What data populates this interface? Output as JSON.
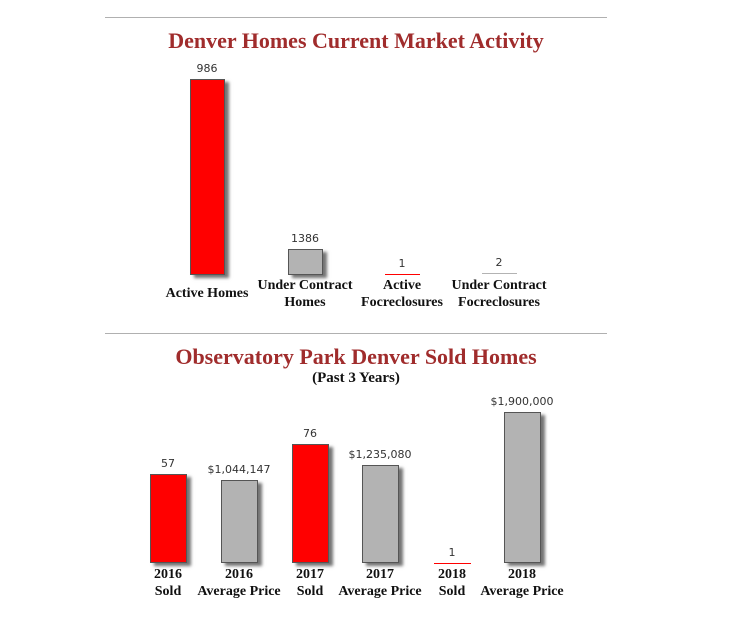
{
  "colors": {
    "red": "#ff0000",
    "gray": "#b3b3b3",
    "title": "#a02c2c"
  },
  "chart_data": [
    {
      "type": "bar",
      "title": "Denver Homes Current Market Activity",
      "categories": [
        "Active Homes",
        "Under Contract\nHomes",
        "Active\nFocreclosures",
        "Under Contract\nFocreclosures"
      ],
      "values": [
        986,
        1386,
        1,
        2
      ],
      "value_labels": [
        "986",
        "1386",
        "1",
        "2"
      ],
      "bar_colors": [
        "#ff0000",
        "#b3b3b3",
        "#ff0000",
        "#b3b3b3"
      ],
      "bar_fraction": [
        1.0,
        0.135,
        0.006,
        0.008
      ],
      "grid": false
    },
    {
      "type": "bar",
      "title": "Observatory Park Denver Sold Homes",
      "subtitle": "(Past 3 Years)",
      "categories": [
        "2016\nSold",
        "2016\nAverage Price",
        "2017\nSold",
        "2017\nAverage Price",
        "2018\nSold",
        "2018\nAverage Price"
      ],
      "values": [
        57,
        1044147,
        76,
        1235080,
        1,
        1900000
      ],
      "value_labels": [
        "57",
        "$1,044,147",
        "76",
        "$1,235,080",
        "1",
        "$1,900,000"
      ],
      "bar_colors": [
        "#ff0000",
        "#b3b3b3",
        "#ff0000",
        "#b3b3b3",
        "#ff0000",
        "#b3b3b3"
      ],
      "bar_fraction": [
        0.59,
        0.55,
        0.79,
        0.65,
        0.0,
        1.0
      ],
      "grid": false
    }
  ]
}
